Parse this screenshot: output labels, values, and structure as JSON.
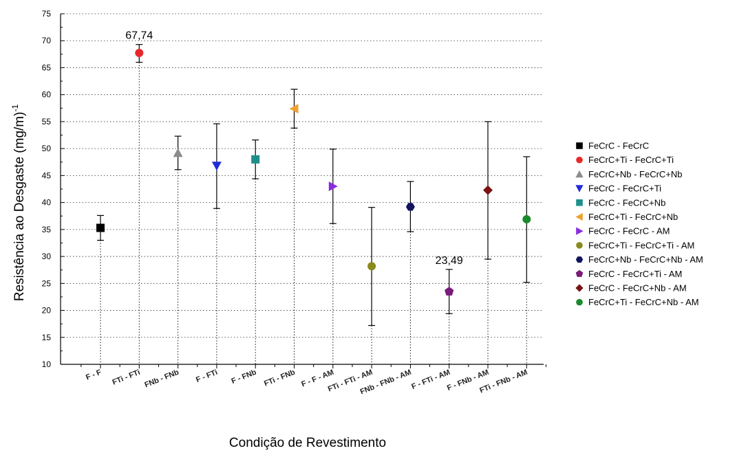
{
  "chart_data": {
    "type": "scatter",
    "xlabel": "Condição de Revestimento",
    "ylabel": "Resistência ao Desgaste (mg/m)",
    "ylabel_sup": "-1",
    "ylim": [
      10,
      75
    ],
    "yticks": [
      10,
      15,
      20,
      25,
      30,
      35,
      40,
      45,
      50,
      55,
      60,
      65,
      70,
      75
    ],
    "grid": "dotted-horizontal",
    "legend_position": "right",
    "categories": [
      "F - F",
      "FTi - FTi",
      "FNb - FNb",
      "F - FTi",
      "F - FNb",
      "FTi - FNb",
      "F - F - AM",
      "FTi - FTi - AM",
      "FNb - FNb - AM",
      "F - FTi - AM",
      "F - FNb - AM",
      "FTi - FNb - AM"
    ],
    "series": [
      {
        "name": "FeCrC - FeCrC",
        "value": 35.3,
        "err_low": 33.0,
        "err_high": 37.6,
        "color": "#000000",
        "marker": "square"
      },
      {
        "name": "FeCrC+Ti - FeCrC+Ti",
        "value": 67.74,
        "err_low": 66.0,
        "err_high": 69.3,
        "color": "#e8282b",
        "marker": "circle"
      },
      {
        "name": "FeCrC+Nb - FeCrC+Nb",
        "value": 49.2,
        "err_low": 46.1,
        "err_high": 52.3,
        "color": "#8c8c8c",
        "marker": "triangle-up"
      },
      {
        "name": "FeCrC - FeCrC+Ti",
        "value": 46.8,
        "err_low": 38.9,
        "err_high": 54.6,
        "color": "#1f2cd6",
        "marker": "triangle-down"
      },
      {
        "name": "FeCrC - FeCrC+Nb",
        "value": 48.0,
        "err_low": 44.4,
        "err_high": 51.6,
        "color": "#1e8f8a",
        "marker": "square"
      },
      {
        "name": "FeCrC+Ti - FeCrC+Nb",
        "value": 57.4,
        "err_low": 53.8,
        "err_high": 61.0,
        "color": "#f0a030",
        "marker": "triangle-left"
      },
      {
        "name": "FeCrC - FeCrC - AM",
        "value": 43.0,
        "err_low": 36.1,
        "err_high": 49.9,
        "color": "#8a2be2",
        "marker": "triangle-right"
      },
      {
        "name": "FeCrC+Ti - FeCrC+Ti - AM",
        "value": 28.2,
        "err_low": 17.2,
        "err_high": 39.1,
        "color": "#8a8a1e",
        "marker": "circle"
      },
      {
        "name": "FeCrC+Nb - FeCrC+Nb - AM",
        "value": 39.2,
        "err_low": 34.6,
        "err_high": 43.9,
        "color": "#12125e",
        "marker": "hexagon"
      },
      {
        "name": "FeCrC - FeCrC+Ti - AM",
        "value": 23.49,
        "err_low": 19.4,
        "err_high": 27.6,
        "color": "#7a1a7a",
        "marker": "pentagon"
      },
      {
        "name": "FeCrC - FeCrC+Nb - AM",
        "value": 42.3,
        "err_low": 29.5,
        "err_high": 55.0,
        "color": "#7a1414",
        "marker": "diamond"
      },
      {
        "name": "FeCrC+Ti - FeCrC+Nb - AM",
        "value": 36.9,
        "err_low": 25.2,
        "err_high": 48.5,
        "color": "#1a8a2a",
        "marker": "circle"
      }
    ],
    "annotations": [
      {
        "text": "67,74",
        "series_index": 1
      },
      {
        "text": "23,49",
        "series_index": 9
      }
    ]
  }
}
